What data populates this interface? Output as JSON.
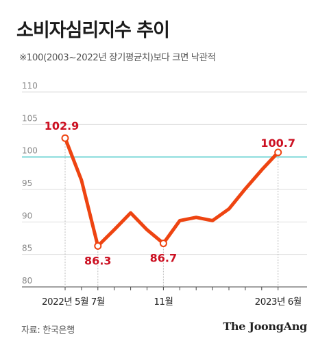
{
  "chart_data": {
    "type": "line",
    "title": "소비자심리지수 추이",
    "subtitle": "※100(2003~2022년 장기평균치)보다 크면 낙관적",
    "x": [
      "2022-05",
      "2022-06",
      "2022-07",
      "2022-08",
      "2022-09",
      "2022-10",
      "2022-11",
      "2022-12",
      "2023-01",
      "2023-02",
      "2023-03",
      "2023-04",
      "2023-05",
      "2023-06"
    ],
    "series": [
      {
        "values": [
          102.9,
          96.4,
          86.3,
          88.8,
          91.4,
          88.8,
          86.7,
          90.2,
          90.7,
          90.2,
          92.0,
          95.1,
          98.0,
          100.7
        ]
      }
    ],
    "x_tick_labels": [
      {
        "index": 0,
        "label": "2022년 5월"
      },
      {
        "index": 2,
        "label": "7월"
      },
      {
        "index": 6,
        "label": "11월"
      },
      {
        "index": 13,
        "label": "2023년 6월"
      }
    ],
    "y_ticks": [
      80,
      85,
      90,
      95,
      100,
      105,
      110
    ],
    "ylim": [
      80,
      110
    ],
    "reference_line": 100,
    "annotations": [
      {
        "index": 0,
        "label": "102.9"
      },
      {
        "index": 2,
        "label": "86.3"
      },
      {
        "index": 6,
        "label": "86.7"
      },
      {
        "index": 13,
        "label": "100.7"
      }
    ],
    "colors": {
      "line": "#ee4411",
      "reference": "#5fcfcf",
      "annotation": "#cc1122",
      "grid": "#dddddd"
    }
  },
  "footer": {
    "source": "자료: 한국은행",
    "logo": "The JoongAng"
  }
}
